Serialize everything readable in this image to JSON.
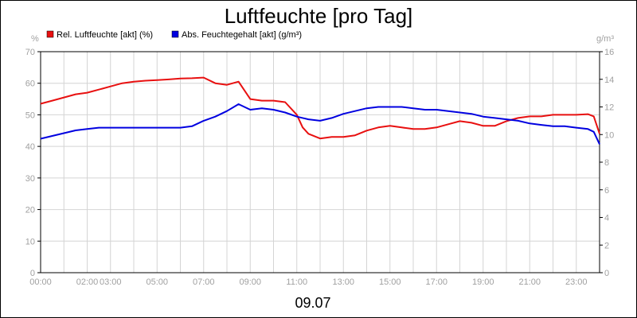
{
  "chart_data": {
    "type": "line",
    "title": "Luftfeuchte [pro Tag]",
    "subtitle": "09.07",
    "left_unit": "%",
    "right_unit": "g/m³",
    "ylim_left": [
      0,
      70
    ],
    "ylim_right": [
      0,
      16
    ],
    "left_ticks": [
      "0",
      "10",
      "20",
      "30",
      "40",
      "50",
      "60",
      "70"
    ],
    "right_ticks": [
      "0",
      "2",
      "4",
      "6",
      "8",
      "10",
      "12",
      "14",
      "16"
    ],
    "x_range_hours": [
      0,
      24
    ],
    "x_tick_labels": [
      {
        "hour": 0,
        "label": "00:00"
      },
      {
        "hour": 2,
        "label": "02:00"
      },
      {
        "hour": 3,
        "label": "03:00"
      },
      {
        "hour": 5,
        "label": "05:00"
      },
      {
        "hour": 7,
        "label": "07:00"
      },
      {
        "hour": 9,
        "label": "09:00"
      },
      {
        "hour": 11,
        "label": "11:00"
      },
      {
        "hour": 13,
        "label": "13:00"
      },
      {
        "hour": 15,
        "label": "15:00"
      },
      {
        "hour": 17,
        "label": "17:00"
      },
      {
        "hour": 19,
        "label": "19:00"
      },
      {
        "hour": 21,
        "label": "21:00"
      },
      {
        "hour": 23,
        "label": "23:00"
      }
    ],
    "grid": true,
    "legend_placement": "top-left",
    "series": [
      {
        "name": "Rel. Luftfeuchte [akt] (%)",
        "axis": "left",
        "color": "#e81010",
        "x": [
          0,
          0.5,
          1,
          1.5,
          2,
          2.5,
          3,
          3.5,
          4,
          4.5,
          5,
          5.5,
          6,
          6.5,
          7,
          7.5,
          8,
          8.5,
          9,
          9.5,
          10,
          10.5,
          11,
          11.25,
          11.5,
          12,
          12.5,
          13,
          13.5,
          14,
          14.5,
          15,
          15.5,
          16,
          16.5,
          17,
          17.5,
          18,
          18.5,
          19,
          19.5,
          20,
          20.5,
          21,
          21.5,
          22,
          22.5,
          23,
          23.5,
          23.75,
          24
        ],
        "values": [
          53.5,
          54.5,
          55.5,
          56.5,
          57,
          58,
          59,
          60,
          60.5,
          60.8,
          61,
          61.2,
          61.5,
          61.6,
          61.8,
          60,
          59.5,
          60.5,
          55,
          54.5,
          54.5,
          54,
          50,
          46,
          44,
          42.5,
          43,
          43,
          43.5,
          45,
          46,
          46.5,
          46,
          45.5,
          45.5,
          46,
          47,
          48,
          47.5,
          46.5,
          46.5,
          48,
          49,
          49.5,
          49.5,
          50,
          50,
          50,
          50.2,
          49.5,
          44
        ]
      },
      {
        "name": "Abs. Feuchtegehalt [akt] (g/m³)",
        "axis": "right",
        "color": "#0000e0",
        "x": [
          0,
          0.5,
          1,
          1.5,
          2,
          2.5,
          3,
          3.5,
          4,
          4.5,
          5,
          5.5,
          6,
          6.5,
          7,
          7.5,
          8,
          8.5,
          9,
          9.5,
          10,
          10.5,
          11,
          11.5,
          12,
          12.5,
          13,
          13.5,
          14,
          14.5,
          15,
          15.5,
          16,
          16.5,
          17,
          17.5,
          18,
          18.5,
          19,
          19.5,
          20,
          20.5,
          21,
          21.5,
          22,
          22.5,
          23,
          23.5,
          23.75,
          24
        ],
        "values": [
          9.7,
          9.9,
          10.1,
          10.3,
          10.4,
          10.5,
          10.5,
          10.5,
          10.5,
          10.5,
          10.5,
          10.5,
          10.5,
          10.6,
          11,
          11.3,
          11.7,
          12.2,
          11.8,
          11.9,
          11.8,
          11.6,
          11.3,
          11.1,
          11,
          11.2,
          11.5,
          11.7,
          11.9,
          12,
          12,
          12,
          11.9,
          11.8,
          11.8,
          11.7,
          11.6,
          11.5,
          11.3,
          11.2,
          11.1,
          11,
          10.8,
          10.7,
          10.6,
          10.6,
          10.5,
          10.4,
          10.2,
          9.3
        ]
      }
    ]
  }
}
